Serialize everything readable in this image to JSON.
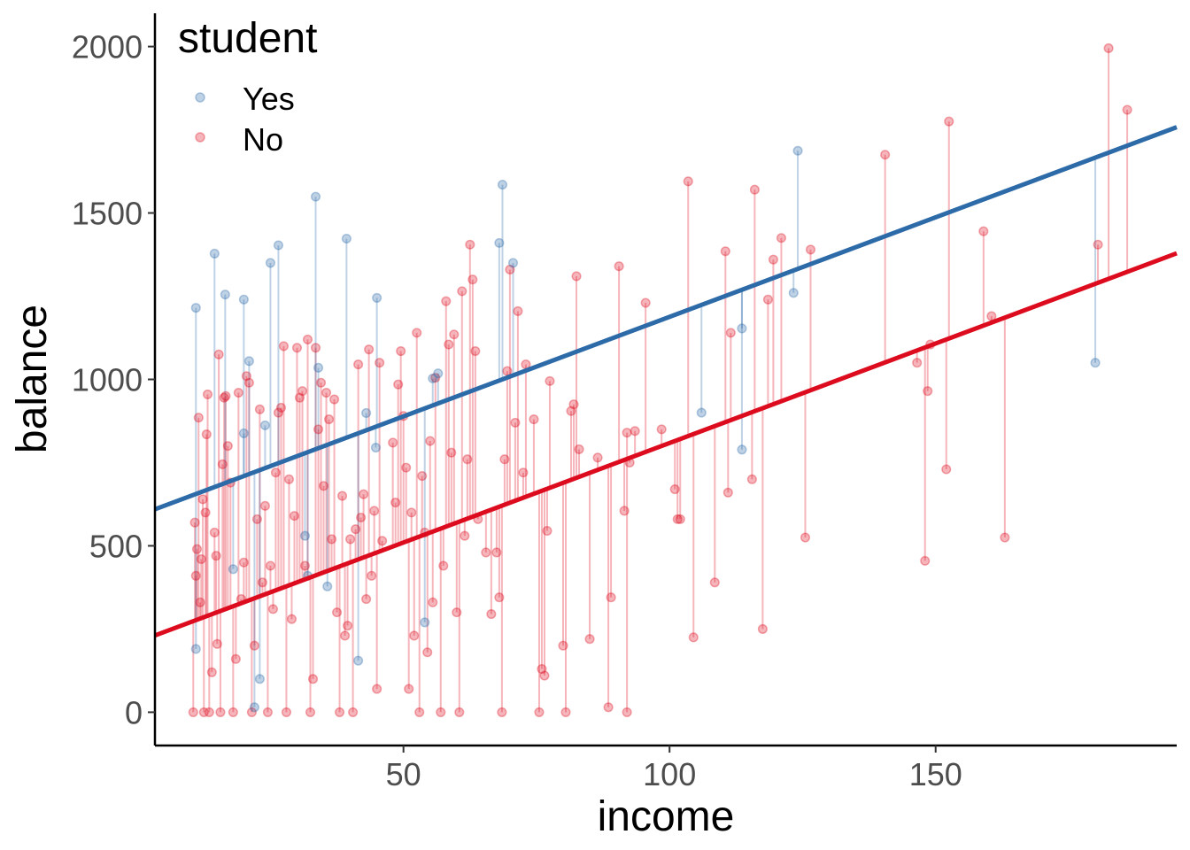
{
  "chart_data": {
    "type": "scatter",
    "xlabel": "income",
    "ylabel": "balance",
    "xlim": [
      3.3,
      195.3
    ],
    "ylim": [
      -100,
      2100
    ],
    "x_ticks": [
      50,
      100,
      150
    ],
    "y_ticks": [
      0,
      500,
      1000,
      1500,
      2000
    ],
    "grid": false,
    "legend": {
      "title": "student",
      "position": "top-left",
      "entries": [
        "Yes",
        "No"
      ]
    },
    "colors": {
      "Yes": "#2c6aa8",
      "No": "#dd0b1e"
    },
    "fit_lines": [
      {
        "name": "Yes",
        "intercept": 589.98,
        "slope": 5.98
      },
      {
        "name": "No",
        "intercept": 210.94,
        "slope": 5.98
      }
    ],
    "series": [
      {
        "name": "Yes",
        "points": [
          [
            11,
            1215
          ],
          [
            11,
            190
          ],
          [
            14.5,
            1378
          ],
          [
            16.5,
            1255
          ],
          [
            18,
            430
          ],
          [
            20,
            1240
          ],
          [
            20,
            838
          ],
          [
            21,
            1055
          ],
          [
            22,
            15
          ],
          [
            23,
            100
          ],
          [
            24,
            862
          ],
          [
            25,
            1350
          ],
          [
            26.5,
            1403
          ],
          [
            31.5,
            530
          ],
          [
            32,
            410
          ],
          [
            33.5,
            1549
          ],
          [
            34,
            1035
          ],
          [
            35.7,
            378
          ],
          [
            39.3,
            1423
          ],
          [
            41.5,
            155
          ],
          [
            43,
            899
          ],
          [
            44.8,
            795
          ],
          [
            45,
            1245
          ],
          [
            54,
            270
          ],
          [
            55.5,
            1003
          ],
          [
            56.5,
            1018
          ],
          [
            68,
            1410
          ],
          [
            68.6,
            1585
          ],
          [
            70.6,
            1350
          ],
          [
            106,
            900
          ],
          [
            113.6,
            1153
          ],
          [
            113.6,
            789
          ],
          [
            123.3,
            1260
          ],
          [
            124.1,
            1687
          ],
          [
            180,
            1050
          ]
        ]
      },
      {
        "name": "No",
        "points": [
          [
            10.5,
            0
          ],
          [
            10.8,
            570
          ],
          [
            11.0,
            410
          ],
          [
            11.2,
            490
          ],
          [
            11.5,
            885
          ],
          [
            11.8,
            330
          ],
          [
            12.0,
            460
          ],
          [
            12.3,
            640
          ],
          [
            12.5,
            0
          ],
          [
            12.8,
            600
          ],
          [
            13.0,
            835
          ],
          [
            13.2,
            955
          ],
          [
            13.5,
            0
          ],
          [
            14.0,
            120
          ],
          [
            14.5,
            540
          ],
          [
            14.8,
            470
          ],
          [
            15.0,
            205
          ],
          [
            15.3,
            1075
          ],
          [
            15.6,
            0
          ],
          [
            16.0,
            745
          ],
          [
            16.3,
            945
          ],
          [
            16.6,
            950
          ],
          [
            17.0,
            800
          ],
          [
            17.5,
            690
          ],
          [
            18.0,
            0
          ],
          [
            18.5,
            160
          ],
          [
            19.0,
            960
          ],
          [
            19.5,
            340
          ],
          [
            20.0,
            450
          ],
          [
            20.5,
            1010
          ],
          [
            21.0,
            990
          ],
          [
            21.5,
            0
          ],
          [
            22.0,
            200
          ],
          [
            22.5,
            580
          ],
          [
            23.0,
            910
          ],
          [
            23.5,
            390
          ],
          [
            24.0,
            620
          ],
          [
            24.5,
            0
          ],
          [
            25.0,
            440
          ],
          [
            25.5,
            310
          ],
          [
            26.0,
            720
          ],
          [
            26.5,
            900
          ],
          [
            27.0,
            915
          ],
          [
            27.5,
            1100
          ],
          [
            28.0,
            0
          ],
          [
            28.5,
            700
          ],
          [
            29.0,
            280
          ],
          [
            29.5,
            590
          ],
          [
            30.0,
            1095
          ],
          [
            30.5,
            945
          ],
          [
            31.0,
            965
          ],
          [
            31.5,
            440
          ],
          [
            32.0,
            1120
          ],
          [
            32.5,
            0
          ],
          [
            33.0,
            100
          ],
          [
            33.5,
            1095
          ],
          [
            34.0,
            850
          ],
          [
            34.5,
            990
          ],
          [
            35.0,
            680
          ],
          [
            35.5,
            960
          ],
          [
            36.0,
            880
          ],
          [
            36.5,
            520
          ],
          [
            37.0,
            940
          ],
          [
            37.5,
            300
          ],
          [
            38.0,
            0
          ],
          [
            38.5,
            650
          ],
          [
            39.0,
            230
          ],
          [
            39.5,
            260
          ],
          [
            40.0,
            520
          ],
          [
            40.5,
            0
          ],
          [
            41.0,
            550
          ],
          [
            41.5,
            1045
          ],
          [
            42.0,
            585
          ],
          [
            42.5,
            655
          ],
          [
            43.0,
            340
          ],
          [
            43.5,
            1090
          ],
          [
            44.0,
            410
          ],
          [
            44.5,
            605
          ],
          [
            45.0,
            70
          ],
          [
            45.5,
            1050
          ],
          [
            46.0,
            515
          ],
          [
            48.0,
            810
          ],
          [
            48.5,
            630
          ],
          [
            49.0,
            985
          ],
          [
            49.5,
            1085
          ],
          [
            50.0,
            890
          ],
          [
            50.5,
            735
          ],
          [
            51.0,
            70
          ],
          [
            51.5,
            600
          ],
          [
            52.0,
            230
          ],
          [
            52.5,
            1140
          ],
          [
            53.0,
            0
          ],
          [
            53.5,
            710
          ],
          [
            54.0,
            540
          ],
          [
            54.5,
            180
          ],
          [
            55.0,
            815
          ],
          [
            55.5,
            330
          ],
          [
            56.0,
            1005
          ],
          [
            57.0,
            0
          ],
          [
            57.5,
            440
          ],
          [
            58.0,
            1235
          ],
          [
            58.5,
            1105
          ],
          [
            59.0,
            780
          ],
          [
            59.5,
            1135
          ],
          [
            60.0,
            300
          ],
          [
            60.5,
            0
          ],
          [
            61.0,
            1265
          ],
          [
            61.5,
            530
          ],
          [
            62.0,
            760
          ],
          [
            62.5,
            1405
          ],
          [
            63.0,
            1300
          ],
          [
            63.5,
            1085
          ],
          [
            64.0,
            580
          ],
          [
            65.5,
            480
          ],
          [
            66.5,
            295
          ],
          [
            67.5,
            480
          ],
          [
            68.0,
            345
          ],
          [
            68.5,
            0
          ],
          [
            69.0,
            760
          ],
          [
            69.5,
            1025
          ],
          [
            70.0,
            1330
          ],
          [
            71.0,
            870
          ],
          [
            71.5,
            1205
          ],
          [
            72.5,
            720
          ],
          [
            73.0,
            1045
          ],
          [
            74.5,
            880
          ],
          [
            75.5,
            0
          ],
          [
            76.0,
            130
          ],
          [
            76.5,
            110
          ],
          [
            77.0,
            545
          ],
          [
            77.5,
            995
          ],
          [
            80.0,
            200
          ],
          [
            80.5,
            0
          ],
          [
            81.5,
            905
          ],
          [
            82.0,
            925
          ],
          [
            82.5,
            1310
          ],
          [
            83.0,
            790
          ],
          [
            85.0,
            220
          ],
          [
            86.5,
            765
          ],
          [
            88.5,
            15
          ],
          [
            89.0,
            345
          ],
          [
            90.5,
            1340
          ],
          [
            91.5,
            605
          ],
          [
            92.0,
            840
          ],
          [
            92.0,
            0
          ],
          [
            92.5,
            750
          ],
          [
            93.5,
            845
          ],
          [
            95.5,
            1230
          ],
          [
            98.5,
            850
          ],
          [
            101.0,
            670
          ],
          [
            101.5,
            580
          ],
          [
            102.0,
            580
          ],
          [
            103.5,
            1595
          ],
          [
            104.5,
            225
          ],
          [
            108.5,
            390
          ],
          [
            110.5,
            1385
          ],
          [
            111.0,
            660
          ],
          [
            111.5,
            1140
          ],
          [
            115.5,
            700
          ],
          [
            116.0,
            1570
          ],
          [
            117.5,
            250
          ],
          [
            118.5,
            1240
          ],
          [
            119.5,
            1360
          ],
          [
            121.0,
            1425
          ],
          [
            125.5,
            525
          ],
          [
            126.5,
            1390
          ],
          [
            140.5,
            1675
          ],
          [
            146.5,
            1050
          ],
          [
            148.0,
            455
          ],
          [
            148.5,
            965
          ],
          [
            149.0,
            1105
          ],
          [
            152.0,
            730
          ],
          [
            152.5,
            1775
          ],
          [
            159.0,
            1445
          ],
          [
            160.5,
            1190
          ],
          [
            163.0,
            525
          ],
          [
            180.5,
            1405
          ],
          [
            182.5,
            1995
          ],
          [
            186.0,
            1810
          ]
        ]
      }
    ]
  }
}
